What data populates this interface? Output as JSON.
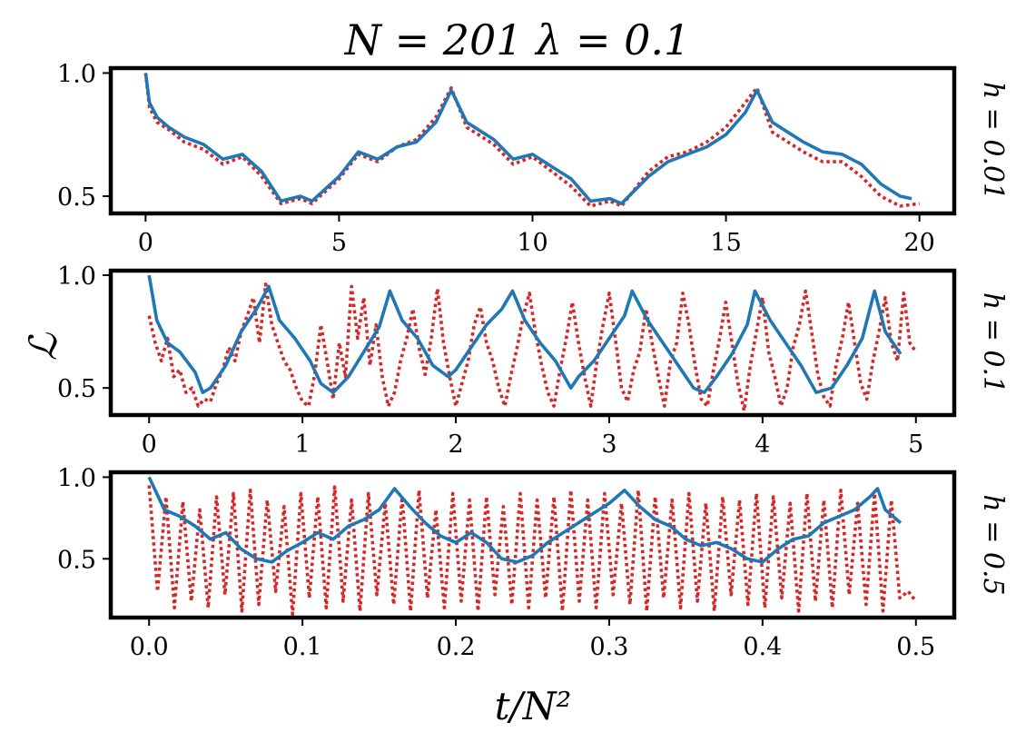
{
  "figure": {
    "title": "N = 201    λ = 0.1",
    "ylabel": "ℒ",
    "xlabel": "t/N²"
  },
  "colors": {
    "solid_series": "#1f77b4",
    "dotted_series": "#d62728"
  },
  "chart_data": [
    {
      "type": "line",
      "panel_label": "h = 0.01",
      "xlim": [
        -0.9,
        20.9
      ],
      "ylim": [
        0.43,
        1.02
      ],
      "xticks": [
        0,
        5,
        10,
        15,
        20
      ],
      "xtick_labels": [
        "0",
        "5",
        "10",
        "15",
        "20"
      ],
      "yticks": [
        0.5,
        1.0
      ],
      "ytick_labels": [
        "0.5",
        "1.0"
      ],
      "series": [
        {
          "name": "solid",
          "style": "solid",
          "x": [
            0,
            0.1,
            0.3,
            0.6,
            1.0,
            1.5,
            2.0,
            2.5,
            3.0,
            3.5,
            4.0,
            4.3,
            5.0,
            5.5,
            6.0,
            6.5,
            7.0,
            7.5,
            7.9,
            8.3,
            9.0,
            9.5,
            10.0,
            10.5,
            11.0,
            11.5,
            12.0,
            12.3,
            13.0,
            13.5,
            14.0,
            14.5,
            15.0,
            15.5,
            15.8,
            16.2,
            17.0,
            17.5,
            18.0,
            18.5,
            19.0,
            19.5,
            19.8
          ],
          "y": [
            1.0,
            0.88,
            0.82,
            0.78,
            0.74,
            0.71,
            0.65,
            0.67,
            0.6,
            0.48,
            0.5,
            0.48,
            0.58,
            0.68,
            0.65,
            0.7,
            0.72,
            0.8,
            0.93,
            0.8,
            0.73,
            0.65,
            0.67,
            0.62,
            0.57,
            0.48,
            0.49,
            0.47,
            0.58,
            0.64,
            0.67,
            0.7,
            0.75,
            0.84,
            0.93,
            0.8,
            0.72,
            0.68,
            0.67,
            0.63,
            0.55,
            0.5,
            0.49
          ]
        },
        {
          "name": "dotted",
          "style": "dotted",
          "x": [
            0,
            0.1,
            0.3,
            0.6,
            1.0,
            1.5,
            2.0,
            2.5,
            3.0,
            3.5,
            4.0,
            4.3,
            5.0,
            5.5,
            6.0,
            6.5,
            7.0,
            7.5,
            7.9,
            8.3,
            9.0,
            9.5,
            10.0,
            10.5,
            11.0,
            11.5,
            12.0,
            12.3,
            13.0,
            13.5,
            14.0,
            14.5,
            15.0,
            15.5,
            15.8,
            16.2,
            17.0,
            17.5,
            18.0,
            18.5,
            19.0,
            19.5,
            20.0
          ],
          "y": [
            1.0,
            0.86,
            0.8,
            0.77,
            0.72,
            0.69,
            0.63,
            0.66,
            0.58,
            0.47,
            0.49,
            0.47,
            0.57,
            0.67,
            0.64,
            0.7,
            0.73,
            0.82,
            0.94,
            0.78,
            0.71,
            0.63,
            0.66,
            0.6,
            0.54,
            0.46,
            0.48,
            0.46,
            0.6,
            0.66,
            0.68,
            0.72,
            0.78,
            0.88,
            0.94,
            0.76,
            0.68,
            0.64,
            0.64,
            0.58,
            0.5,
            0.46,
            0.47
          ]
        }
      ]
    },
    {
      "type": "line",
      "panel_label": "h = 0.1",
      "xlim": [
        -0.25,
        5.25
      ],
      "ylim": [
        0.38,
        1.02
      ],
      "xticks": [
        0,
        1,
        2,
        3,
        4,
        5
      ],
      "xtick_labels": [
        "0",
        "1",
        "2",
        "3",
        "4",
        "5"
      ],
      "yticks": [
        0.5,
        1.0
      ],
      "ytick_labels": [
        "0.5",
        "1.0"
      ],
      "series": [
        {
          "name": "solid",
          "style": "solid",
          "x": [
            0,
            0.05,
            0.12,
            0.2,
            0.3,
            0.35,
            0.4,
            0.5,
            0.6,
            0.7,
            0.78,
            0.85,
            0.95,
            1.05,
            1.12,
            1.2,
            1.3,
            1.4,
            1.5,
            1.57,
            1.65,
            1.75,
            1.85,
            1.95,
            2.0,
            2.1,
            2.2,
            2.3,
            2.37,
            2.45,
            2.55,
            2.65,
            2.75,
            2.8,
            2.9,
            3.0,
            3.1,
            3.15,
            3.25,
            3.35,
            3.45,
            3.55,
            3.62,
            3.7,
            3.8,
            3.9,
            3.95,
            4.05,
            4.15,
            4.25,
            4.35,
            4.45,
            4.55,
            4.65,
            4.73,
            4.8,
            4.9
          ],
          "y": [
            1.0,
            0.8,
            0.7,
            0.66,
            0.57,
            0.48,
            0.5,
            0.6,
            0.75,
            0.85,
            0.95,
            0.8,
            0.72,
            0.62,
            0.52,
            0.48,
            0.55,
            0.66,
            0.77,
            0.93,
            0.8,
            0.72,
            0.6,
            0.55,
            0.58,
            0.68,
            0.78,
            0.85,
            0.93,
            0.8,
            0.7,
            0.62,
            0.5,
            0.55,
            0.62,
            0.72,
            0.82,
            0.93,
            0.8,
            0.7,
            0.6,
            0.5,
            0.48,
            0.55,
            0.65,
            0.78,
            0.93,
            0.8,
            0.7,
            0.6,
            0.48,
            0.5,
            0.6,
            0.72,
            0.93,
            0.75,
            0.65
          ]
        },
        {
          "name": "dotted",
          "style": "dotted",
          "x": [
            0,
            0.04,
            0.08,
            0.12,
            0.16,
            0.2,
            0.24,
            0.28,
            0.32,
            0.36,
            0.4,
            0.44,
            0.48,
            0.52,
            0.56,
            0.6,
            0.64,
            0.68,
            0.72,
            0.76,
            0.8,
            0.84,
            0.88,
            0.92,
            0.96,
            1.0,
            1.04,
            1.08,
            1.12,
            1.16,
            1.2,
            1.24,
            1.28,
            1.32,
            1.36,
            1.4,
            1.44,
            1.48,
            1.52,
            1.56,
            1.6,
            1.64,
            1.68,
            1.72,
            1.76,
            1.8,
            1.84,
            1.88,
            1.92,
            1.96,
            2.0,
            2.04,
            2.08,
            2.12,
            2.16,
            2.2,
            2.24,
            2.28,
            2.32,
            2.36,
            2.4,
            2.44,
            2.48,
            2.52,
            2.56,
            2.6,
            2.64,
            2.68,
            2.72,
            2.76,
            2.8,
            2.84,
            2.88,
            2.92,
            2.96,
            3.0,
            3.04,
            3.08,
            3.12,
            3.16,
            3.2,
            3.24,
            3.28,
            3.32,
            3.36,
            3.4,
            3.44,
            3.48,
            3.52,
            3.56,
            3.6,
            3.64,
            3.68,
            3.72,
            3.76,
            3.8,
            3.84,
            3.88,
            3.92,
            3.96,
            4.0,
            4.04,
            4.08,
            4.12,
            4.16,
            4.2,
            4.24,
            4.28,
            4.32,
            4.36,
            4.4,
            4.44,
            4.48,
            4.52,
            4.56,
            4.6,
            4.64,
            4.68,
            4.72,
            4.76,
            4.8,
            4.84,
            4.88,
            4.92,
            4.96,
            5.0
          ],
          "y": [
            0.82,
            0.7,
            0.62,
            0.72,
            0.55,
            0.58,
            0.48,
            0.5,
            0.42,
            0.45,
            0.44,
            0.52,
            0.58,
            0.68,
            0.62,
            0.75,
            0.82,
            0.9,
            0.7,
            0.96,
            0.78,
            0.7,
            0.62,
            0.58,
            0.5,
            0.44,
            0.42,
            0.56,
            0.78,
            0.62,
            0.45,
            0.7,
            0.55,
            0.95,
            0.72,
            0.9,
            0.6,
            0.78,
            0.55,
            0.42,
            0.48,
            0.62,
            0.72,
            0.85,
            0.68,
            0.56,
            0.72,
            0.94,
            0.7,
            0.55,
            0.42,
            0.52,
            0.62,
            0.78,
            0.86,
            0.7,
            0.62,
            0.5,
            0.42,
            0.56,
            0.68,
            0.82,
            0.92,
            0.74,
            0.6,
            0.48,
            0.42,
            0.58,
            0.72,
            0.88,
            0.7,
            0.55,
            0.42,
            0.62,
            0.78,
            0.92,
            0.72,
            0.5,
            0.44,
            0.58,
            0.66,
            0.85,
            0.7,
            0.55,
            0.42,
            0.62,
            0.7,
            0.92,
            0.78,
            0.6,
            0.45,
            0.42,
            0.58,
            0.72,
            0.88,
            0.7,
            0.52,
            0.4,
            0.6,
            0.75,
            0.9,
            0.66,
            0.55,
            0.42,
            0.5,
            0.68,
            0.78,
            0.93,
            0.75,
            0.56,
            0.46,
            0.42,
            0.6,
            0.72,
            0.88,
            0.7,
            0.52,
            0.45,
            0.62,
            0.75,
            0.9,
            0.7,
            0.62,
            0.92,
            0.7,
            0.66
          ]
        }
      ]
    },
    {
      "type": "line",
      "panel_label": "h = 0.5",
      "xlim": [
        -0.025,
        0.525
      ],
      "ylim": [
        0.14,
        1.03
      ],
      "xticks": [
        0.0,
        0.1,
        0.2,
        0.3,
        0.4,
        0.5
      ],
      "xtick_labels": [
        "0.0",
        "0.1",
        "0.2",
        "0.3",
        "0.4",
        "0.5"
      ],
      "yticks": [
        0.5,
        1.0
      ],
      "ytick_labels": [
        "0.5",
        "1.0"
      ],
      "series": [
        {
          "name": "solid",
          "style": "solid",
          "x": [
            0,
            0.01,
            0.02,
            0.03,
            0.04,
            0.05,
            0.06,
            0.07,
            0.08,
            0.09,
            0.1,
            0.11,
            0.12,
            0.13,
            0.14,
            0.15,
            0.16,
            0.17,
            0.18,
            0.19,
            0.2,
            0.21,
            0.22,
            0.23,
            0.24,
            0.25,
            0.26,
            0.27,
            0.28,
            0.29,
            0.3,
            0.31,
            0.32,
            0.33,
            0.34,
            0.35,
            0.36,
            0.37,
            0.38,
            0.39,
            0.4,
            0.41,
            0.42,
            0.43,
            0.44,
            0.45,
            0.46,
            0.47,
            0.475,
            0.48,
            0.49
          ],
          "y": [
            1.0,
            0.8,
            0.76,
            0.7,
            0.62,
            0.66,
            0.56,
            0.5,
            0.48,
            0.55,
            0.6,
            0.66,
            0.62,
            0.7,
            0.74,
            0.8,
            0.93,
            0.82,
            0.72,
            0.64,
            0.6,
            0.66,
            0.6,
            0.5,
            0.48,
            0.52,
            0.6,
            0.66,
            0.72,
            0.78,
            0.84,
            0.92,
            0.82,
            0.74,
            0.7,
            0.62,
            0.58,
            0.6,
            0.56,
            0.5,
            0.48,
            0.56,
            0.62,
            0.64,
            0.72,
            0.76,
            0.8,
            0.88,
            0.93,
            0.8,
            0.72
          ]
        },
        {
          "name": "dotted",
          "style": "dotted",
          "x": [
            0,
            0.0055,
            0.011,
            0.0165,
            0.022,
            0.0275,
            0.033,
            0.0385,
            0.044,
            0.0495,
            0.055,
            0.0605,
            0.066,
            0.0715,
            0.077,
            0.0825,
            0.088,
            0.0935,
            0.099,
            0.1045,
            0.11,
            0.1155,
            0.121,
            0.1265,
            0.132,
            0.1375,
            0.143,
            0.1485,
            0.154,
            0.1595,
            0.165,
            0.1705,
            0.176,
            0.1815,
            0.187,
            0.1925,
            0.198,
            0.2035,
            0.209,
            0.2145,
            0.22,
            0.2255,
            0.231,
            0.2365,
            0.242,
            0.2475,
            0.253,
            0.2585,
            0.264,
            0.2695,
            0.275,
            0.2805,
            0.286,
            0.2915,
            0.297,
            0.3025,
            0.308,
            0.3135,
            0.319,
            0.3245,
            0.33,
            0.3355,
            0.341,
            0.3465,
            0.352,
            0.3575,
            0.363,
            0.3685,
            0.374,
            0.3795,
            0.385,
            0.3905,
            0.396,
            0.4015,
            0.407,
            0.4125,
            0.418,
            0.4235,
            0.429,
            0.4345,
            0.44,
            0.4455,
            0.451,
            0.4565,
            0.462,
            0.4675,
            0.473,
            0.4785,
            0.484,
            0.4895,
            0.495,
            0.5
          ],
          "y": [
            0.95,
            0.3,
            0.88,
            0.2,
            0.85,
            0.24,
            0.8,
            0.2,
            0.88,
            0.28,
            0.9,
            0.18,
            0.92,
            0.22,
            0.86,
            0.3,
            0.82,
            0.16,
            0.9,
            0.26,
            0.88,
            0.2,
            0.94,
            0.24,
            0.86,
            0.18,
            0.9,
            0.28,
            0.84,
            0.22,
            0.88,
            0.18,
            0.92,
            0.26,
            0.8,
            0.2,
            0.9,
            0.24,
            0.86,
            0.18,
            0.88,
            0.28,
            0.82,
            0.22,
            0.9,
            0.2,
            0.86,
            0.26,
            0.88,
            0.18,
            0.92,
            0.24,
            0.86,
            0.2,
            0.9,
            0.28,
            0.84,
            0.22,
            0.92,
            0.18,
            0.88,
            0.26,
            0.86,
            0.2,
            0.9,
            0.24,
            0.84,
            0.18,
            0.88,
            0.28,
            0.86,
            0.22,
            0.9,
            0.2,
            0.88,
            0.26,
            0.84,
            0.18,
            0.9,
            0.24,
            0.86,
            0.2,
            0.92,
            0.28,
            0.84,
            0.22,
            0.9,
            0.18,
            0.86,
            0.26,
            0.3,
            0.24
          ]
        }
      ]
    }
  ]
}
